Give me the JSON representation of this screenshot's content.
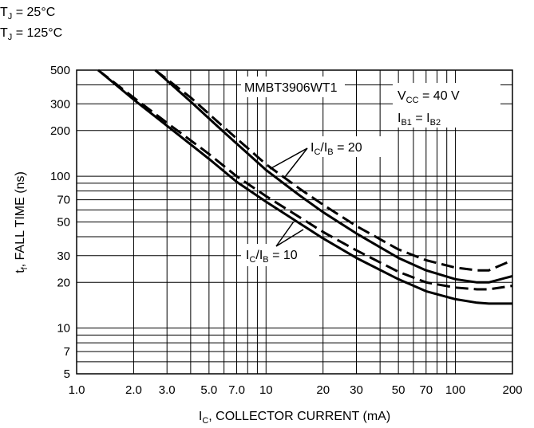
{
  "chart_data": {
    "type": "line",
    "title": "",
    "x_scale": "log",
    "y_scale": "log",
    "xlim": [
      1.0,
      200
    ],
    "ylim": [
      5,
      500
    ],
    "grid": true,
    "legend_position": "top-left",
    "x_ticks": [
      1.0,
      2.0,
      3.0,
      5.0,
      7.0,
      10,
      20,
      30,
      50,
      70,
      100,
      200
    ],
    "x_tick_labels": [
      "1.0",
      "2.0",
      "3.0",
      "5.0",
      "7.0",
      "10",
      "20",
      "30",
      "50",
      "70",
      "100",
      "200"
    ],
    "y_ticks": [
      5,
      7,
      10,
      20,
      30,
      50,
      70,
      100,
      200,
      300,
      500
    ],
    "y_tick_labels": [
      "5",
      "7",
      "10",
      "20",
      "30",
      "50",
      "70",
      "100",
      "200",
      "300",
      "500"
    ],
    "xlabel": {
      "main": "I",
      "sub": "C",
      "rest": ", COLLECTOR CURRENT (mA)"
    },
    "ylabel": {
      "main": "t",
      "sub": "f",
      "rest": ", FALL TIME (ns)"
    },
    "legend": [
      {
        "main": "T",
        "sub": "J",
        "rest": " = 25°C",
        "style": "solid"
      },
      {
        "main": "T",
        "sub": "J",
        "rest": " = 125°C",
        "style": "dashed"
      }
    ],
    "annotations": {
      "device": "MMBT3906WT1",
      "vcc": {
        "main": "V",
        "sub": "CC",
        "rest": " = 40 V"
      },
      "ib": {
        "main": "I",
        "sub1": "B1",
        "mid": " = I",
        "sub2": "B2"
      },
      "ratio20": {
        "main": "I",
        "sub1": "C",
        "mid": "/I",
        "sub2": "B",
        "rest": " = 20"
      },
      "ratio10": {
        "main": "I",
        "sub1": "C",
        "mid": "/I",
        "sub2": "B",
        "rest": " = 10"
      }
    },
    "series": [
      {
        "style": "solid",
        "x": [
          1.3,
          2,
          3,
          5,
          7,
          10,
          20,
          30,
          50,
          70,
          100,
          130,
          150,
          200
        ],
        "y": [
          500,
          320,
          215,
          130,
          92,
          68,
          39,
          29,
          21,
          17.5,
          15.5,
          14.7,
          14.5,
          14.5
        ]
      },
      {
        "style": "dashed",
        "x": [
          1.3,
          2,
          3,
          5,
          7,
          10,
          20,
          30,
          50,
          70,
          100,
          130,
          150,
          200
        ],
        "y": [
          500,
          330,
          225,
          140,
          100,
          74,
          43,
          32.5,
          23.5,
          20,
          18.5,
          18,
          18,
          19
        ]
      },
      {
        "style": "solid",
        "x": [
          2.6,
          4,
          6,
          10,
          15,
          20,
          30,
          50,
          70,
          100,
          130,
          150,
          200
        ],
        "y": [
          500,
          310,
          195,
          110,
          75,
          58,
          42,
          29,
          24,
          21,
          20,
          20,
          22
        ]
      },
      {
        "style": "dashed",
        "x": [
          2.6,
          4,
          6,
          10,
          15,
          20,
          30,
          50,
          70,
          100,
          130,
          150,
          200
        ],
        "y": [
          500,
          330,
          210,
          120,
          83,
          65,
          47,
          33,
          28,
          25,
          24,
          24,
          28
        ]
      }
    ]
  }
}
